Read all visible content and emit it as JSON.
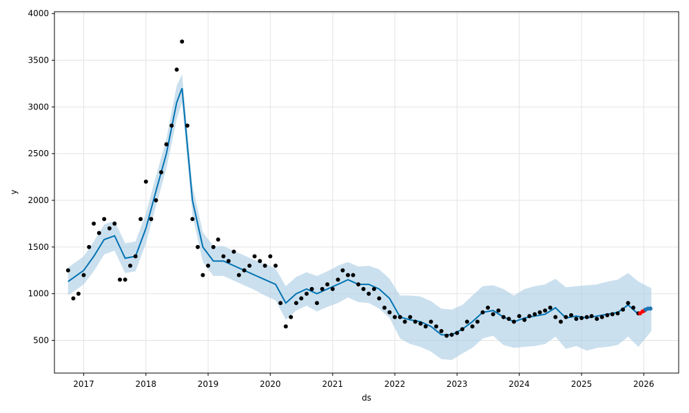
{
  "chart_data": {
    "type": "scatter",
    "title": "",
    "xlabel": "ds",
    "ylabel": "y",
    "x_ticks": [
      "2017",
      "2018",
      "2019",
      "2020",
      "2021",
      "2022",
      "2023",
      "2024",
      "2025",
      "2026"
    ],
    "y_ticks": [
      500,
      1000,
      1500,
      2000,
      2500,
      3000,
      3500,
      4000
    ],
    "xlim": [
      "2016-07-13",
      "2026-07-25"
    ],
    "ylim": [
      150,
      4020
    ],
    "grid": true,
    "colors": {
      "observed": "#000000",
      "forecast_line": "#0072B2",
      "uncertainty_band": "#A9CCE3",
      "recent_highlight": "#FF0000",
      "future_points": "#1F77B4"
    },
    "series": [
      {
        "kind": "observed",
        "x": [
          "2016-10-01",
          "2016-11-01",
          "2016-12-01",
          "2017-01-01",
          "2017-02-01",
          "2017-03-01",
          "2017-04-01",
          "2017-05-01",
          "2017-06-01",
          "2017-07-01",
          "2017-08-01",
          "2017-09-01",
          "2017-10-01",
          "2017-11-01",
          "2017-12-01",
          "2018-01-01",
          "2018-02-01",
          "2018-03-01",
          "2018-04-01",
          "2018-05-01",
          "2018-06-01",
          "2018-07-01",
          "2018-08-01",
          "2018-09-01",
          "2018-10-01",
          "2018-11-01",
          "2018-12-01",
          "2019-01-01",
          "2019-02-01",
          "2019-03-01",
          "2019-04-01",
          "2019-05-01",
          "2019-06-01",
          "2019-07-01",
          "2019-08-01",
          "2019-09-01",
          "2019-10-01",
          "2019-11-01",
          "2019-12-01",
          "2020-01-01",
          "2020-02-01",
          "2020-03-01",
          "2020-04-01",
          "2020-05-01",
          "2020-06-01",
          "2020-07-01",
          "2020-08-01",
          "2020-09-01",
          "2020-10-01",
          "2020-11-01",
          "2020-12-01",
          "2021-01-01",
          "2021-02-01",
          "2021-03-01",
          "2021-04-01",
          "2021-05-01",
          "2021-06-01",
          "2021-07-01",
          "2021-08-01",
          "2021-09-01",
          "2021-10-01",
          "2021-11-01",
          "2021-12-01",
          "2022-01-01",
          "2022-02-01",
          "2022-03-01",
          "2022-04-01",
          "2022-05-01",
          "2022-06-01",
          "2022-07-01",
          "2022-08-01",
          "2022-09-01",
          "2022-10-01",
          "2022-11-01",
          "2022-12-01",
          "2023-01-01",
          "2023-02-01",
          "2023-03-01",
          "2023-04-01",
          "2023-05-01",
          "2023-06-01",
          "2023-07-01",
          "2023-08-01",
          "2023-09-01",
          "2023-10-01",
          "2023-11-01",
          "2023-12-01",
          "2024-01-01",
          "2024-02-01",
          "2024-03-01",
          "2024-04-01",
          "2024-05-01",
          "2024-06-01",
          "2024-07-01",
          "2024-08-01",
          "2024-09-01",
          "2024-10-01",
          "2024-11-01",
          "2024-12-01",
          "2025-01-01",
          "2025-02-01",
          "2025-03-01",
          "2025-04-01",
          "2025-05-01",
          "2025-06-01",
          "2025-07-01",
          "2025-08-01",
          "2025-09-01",
          "2025-10-01",
          "2025-11-01",
          "2025-12-01"
        ],
        "y": [
          1250,
          950,
          1000,
          1200,
          1500,
          1750,
          1650,
          1800,
          1700,
          1750,
          1150,
          1150,
          1300,
          1400,
          1800,
          2200,
          1800,
          2000,
          2300,
          2600,
          2800,
          3400,
          3700,
          2800,
          1800,
          1500,
          1200,
          1300,
          1500,
          1580,
          1400,
          1350,
          1450,
          1200,
          1250,
          1300,
          1400,
          1350,
          1300,
          1400,
          1300,
          900,
          650,
          750,
          900,
          950,
          1000,
          1050,
          900,
          1050,
          1100,
          1050,
          1150,
          1250,
          1200,
          1200,
          1100,
          1050,
          1000,
          1050,
          950,
          850,
          800,
          750,
          750,
          700,
          750,
          700,
          680,
          650,
          700,
          650,
          600,
          550,
          560,
          580,
          620,
          700,
          650,
          700,
          800,
          850,
          780,
          820,
          750,
          730,
          700,
          760,
          720,
          760,
          780,
          800,
          820,
          850,
          750,
          700,
          750,
          770,
          730,
          740,
          750,
          760,
          730,
          750,
          770,
          780,
          790,
          830,
          900,
          850,
          790
        ]
      },
      {
        "kind": "recent",
        "x": [
          "2025-12-10",
          "2025-12-25",
          "2026-01-05"
        ],
        "y": [
          790,
          810,
          820
        ]
      },
      {
        "kind": "future",
        "x": [
          "2026-01-12",
          "2026-01-26",
          "2026-02-09"
        ],
        "y": [
          830,
          840,
          840
        ]
      },
      {
        "kind": "forecast",
        "x": [
          "2016-10-01",
          "2017-01-01",
          "2017-03-01",
          "2017-05-01",
          "2017-07-01",
          "2017-08-01",
          "2017-09-01",
          "2017-11-01",
          "2018-01-01",
          "2018-03-01",
          "2018-05-01",
          "2018-07-01",
          "2018-08-01",
          "2018-10-01",
          "2018-12-01",
          "2019-02-01",
          "2019-04-01",
          "2019-06-01",
          "2019-08-01",
          "2019-10-01",
          "2019-12-01",
          "2020-02-01",
          "2020-04-01",
          "2020-06-01",
          "2020-08-01",
          "2020-10-01",
          "2020-12-01",
          "2021-02-01",
          "2021-04-01",
          "2021-06-01",
          "2021-08-01",
          "2021-10-01",
          "2021-12-01",
          "2022-02-01",
          "2022-04-01",
          "2022-06-01",
          "2022-08-01",
          "2022-10-01",
          "2022-12-01",
          "2023-02-01",
          "2023-04-01",
          "2023-06-01",
          "2023-08-01",
          "2023-10-01",
          "2023-12-01",
          "2024-02-01",
          "2024-04-01",
          "2024-06-01",
          "2024-08-01",
          "2024-10-01",
          "2024-12-01",
          "2025-02-01",
          "2025-04-01",
          "2025-06-01",
          "2025-08-01",
          "2025-10-01",
          "2025-12-01",
          "2026-02-15"
        ],
        "y": [
          1130,
          1250,
          1400,
          1580,
          1620,
          1500,
          1380,
          1400,
          1700,
          2100,
          2500,
          3050,
          3200,
          2000,
          1500,
          1350,
          1350,
          1300,
          1250,
          1200,
          1150,
          1100,
          900,
          1000,
          1050,
          1000,
          1050,
          1100,
          1150,
          1100,
          1100,
          1050,
          950,
          750,
          720,
          700,
          650,
          560,
          560,
          620,
          700,
          800,
          820,
          750,
          700,
          740,
          760,
          780,
          850,
          740,
          760,
          740,
          760,
          780,
          800,
          880,
          780,
          860
        ],
        "upper": [
          1280,
          1400,
          1560,
          1740,
          1780,
          1660,
          1540,
          1560,
          1860,
          2260,
          2660,
          3230,
          3350,
          2160,
          1660,
          1510,
          1510,
          1460,
          1410,
          1360,
          1320,
          1270,
          1080,
          1180,
          1230,
          1190,
          1240,
          1300,
          1340,
          1290,
          1300,
          1260,
          1160,
          980,
          980,
          970,
          920,
          840,
          830,
          880,
          980,
          1080,
          1090,
          1050,
          980,
          1050,
          1080,
          1100,
          1160,
          1070,
          1080,
          1090,
          1100,
          1130,
          1150,
          1220,
          1130,
          1060
        ],
        "lower": [
          980,
          1100,
          1240,
          1420,
          1460,
          1340,
          1220,
          1240,
          1540,
          1940,
          2340,
          2870,
          3050,
          1840,
          1340,
          1190,
          1190,
          1140,
          1090,
          1040,
          980,
          930,
          720,
          820,
          870,
          810,
          860,
          900,
          960,
          910,
          900,
          840,
          740,
          520,
          460,
          430,
          380,
          300,
          290,
          360,
          420,
          520,
          550,
          450,
          420,
          430,
          440,
          460,
          540,
          410,
          440,
          390,
          420,
          430,
          450,
          540,
          430,
          600
        ]
      }
    ]
  }
}
